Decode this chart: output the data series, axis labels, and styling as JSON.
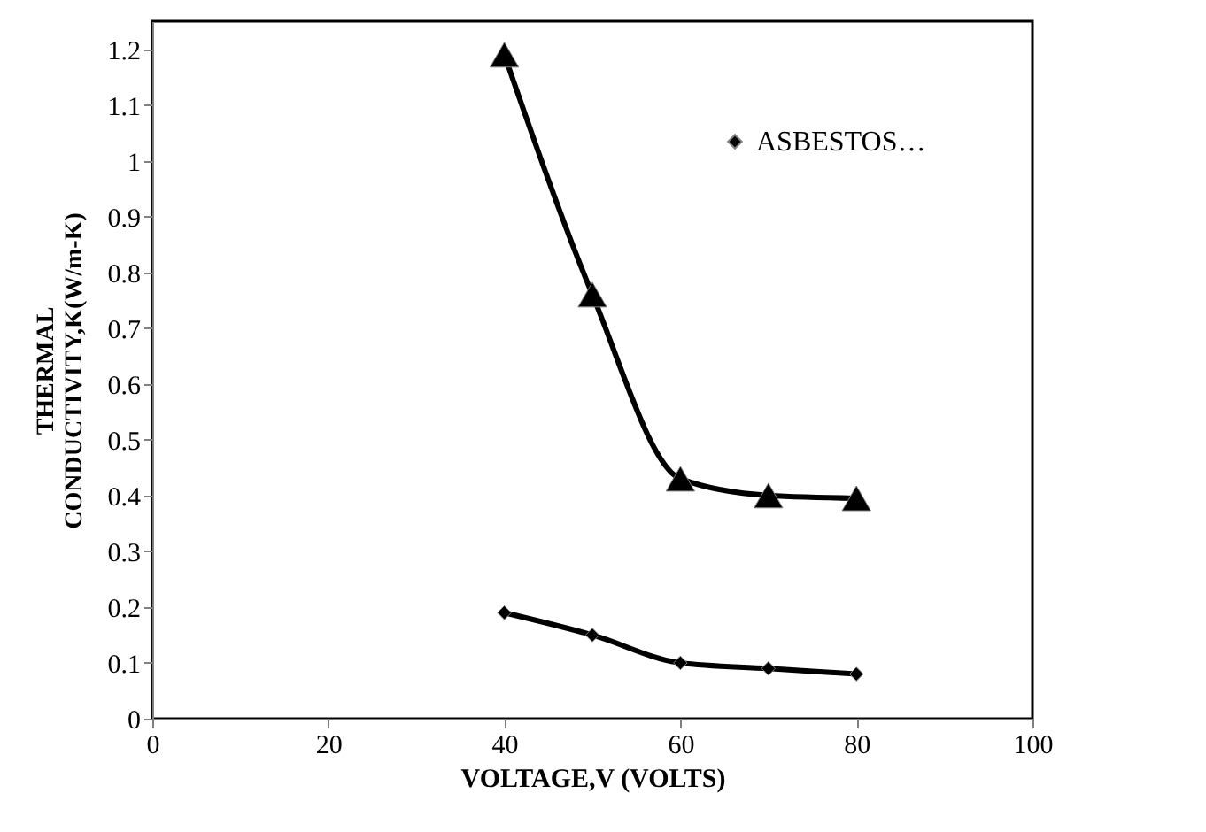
{
  "chart_data": {
    "type": "line",
    "xlabel": "VOLTAGE,V (VOLTS)",
    "ylabel": "THERMAL\nCONDUCTIVITY,K(W/m-K)",
    "x": [
      40,
      50,
      60,
      70,
      80
    ],
    "series": [
      {
        "color": "#000000",
        "marker": "triangle",
        "values": [
          1.19,
          0.76,
          0.43,
          0.4,
          0.395
        ]
      },
      {
        "name": "ASBESTOS…",
        "color": "#000000",
        "marker": "diamond",
        "values": [
          0.19,
          0.15,
          0.1,
          0.09,
          0.08
        ]
      }
    ],
    "xlim": [
      0,
      100
    ],
    "xticks": [
      0,
      20,
      40,
      60,
      80,
      100
    ],
    "ylim": [
      0,
      1.25
    ],
    "yticks": [
      0,
      0.1,
      0.2,
      0.3,
      0.4,
      0.5,
      0.6,
      0.7,
      0.8,
      0.9,
      1,
      1.1,
      1.2
    ],
    "grid": false,
    "legend": "top right"
  }
}
